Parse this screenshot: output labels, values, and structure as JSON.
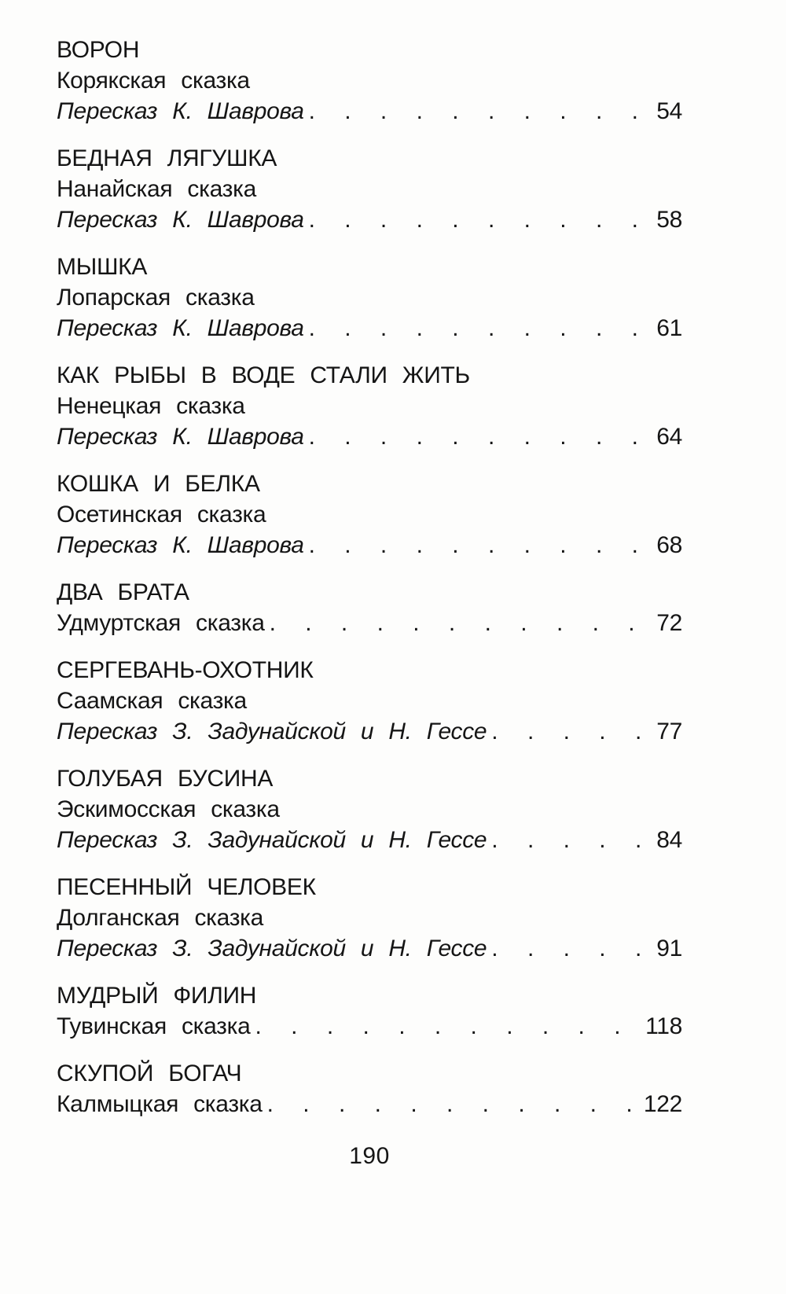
{
  "toc": {
    "entries": [
      {
        "title": "ВОРОН",
        "subtitle": "Корякская сказка",
        "credit": "Пересказ К. Шаврова",
        "page": "54"
      },
      {
        "title": "БЕДНАЯ ЛЯГУШКА",
        "subtitle": "Нанайская сказка",
        "credit": "Пересказ К. Шаврова",
        "page": "58"
      },
      {
        "title": "МЫШКА",
        "subtitle": "Лопарская сказка",
        "credit": "Пересказ К. Шаврова",
        "page": "61"
      },
      {
        "title": "КАК РЫБЫ В ВОДЕ СТАЛИ ЖИТЬ",
        "subtitle": "Ненецкая сказка",
        "credit": "Пересказ К. Шаврова",
        "page": "64"
      },
      {
        "title": "КОШКА И БЕЛКА",
        "subtitle": "Осетинская сказка",
        "credit": "Пересказ К. Шаврова",
        "page": "68"
      },
      {
        "title": "ДВА БРАТА",
        "subtitle": "Удмуртская сказка",
        "credit": "",
        "page": "72"
      },
      {
        "title": "СЕРГЕВАНЬ-ОХОТНИК",
        "subtitle": "Саамская сказка",
        "credit": "Пересказ З. Задунайской и Н. Гессе",
        "page": "77"
      },
      {
        "title": "ГОЛУБАЯ БУСИНА",
        "subtitle": "Эскимосская сказка",
        "credit": "Пересказ З. Задунайской и Н. Гессе",
        "page": "84"
      },
      {
        "title": "ПЕСЕННЫЙ ЧЕЛОВЕК",
        "subtitle": "Долганская сказка",
        "credit": "Пересказ З. Задунайской и Н. Гессе",
        "page": "91"
      },
      {
        "title": "МУДРЫЙ ФИЛИН",
        "subtitle": "Тувинская сказка",
        "credit": "",
        "page": "118"
      },
      {
        "title": "СКУПОЙ БОГАЧ",
        "subtitle": "Калмыцкая сказка",
        "credit": "",
        "page": "122"
      }
    ],
    "folio": "190",
    "text_color": "#151515",
    "background_color": "#fdfdfc"
  }
}
